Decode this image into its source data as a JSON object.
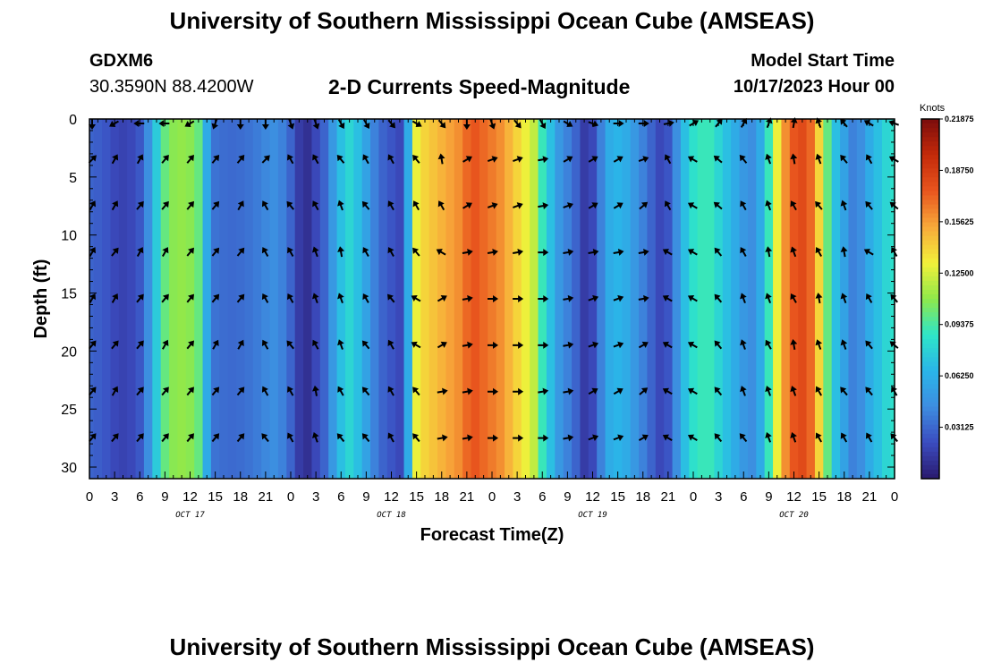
{
  "header": {
    "title": "University of Southern Mississippi Ocean Cube (AMSEAS)",
    "station": "GDXM6",
    "coords": "30.3590N  88.4200W",
    "subtitle": "2-D Currents Speed-Magnitude",
    "model_start_label": "Model Start Time",
    "model_start_value": "10/17/2023 Hour 00"
  },
  "footer": {
    "title": "University of Southern Mississippi Ocean Cube (AMSEAS)"
  },
  "colors": {
    "palette": [
      "#2a1a6e",
      "#3b4cc0",
      "#3d8de0",
      "#2ab5e8",
      "#2ee6c8",
      "#8fe84a",
      "#f3f03a",
      "#f8a93a",
      "#e8551e",
      "#c42a0a",
      "#7a0c0c"
    ]
  },
  "chart_data": {
    "type": "heatmap",
    "title": "2-D Currents Speed-Magnitude",
    "xlabel": "Forecast Time(Z)",
    "ylabel": "Depth (ft)",
    "x_tick_labels": [
      "0",
      "3",
      "6",
      "9",
      "12",
      "15",
      "18",
      "21",
      "0",
      "3",
      "6",
      "9",
      "12",
      "15",
      "18",
      "21",
      "0",
      "3",
      "6",
      "9",
      "12",
      "15",
      "18",
      "21",
      "0",
      "3",
      "6",
      "9",
      "12",
      "15",
      "18",
      "21",
      "0"
    ],
    "day_labels": [
      {
        "hour": 12,
        "label": "OCT 17"
      },
      {
        "hour": 36,
        "label": "OCT 18"
      },
      {
        "hour": 60,
        "label": "OCT 19"
      },
      {
        "hour": 84,
        "label": "OCT 20"
      }
    ],
    "xlim": [
      0,
      96
    ],
    "ylim": [
      0,
      31
    ],
    "y_ticks": [
      0,
      5,
      10,
      15,
      20,
      25,
      30
    ],
    "colorbar": {
      "label": "Knots",
      "tick_labels": [
        "0.21875",
        "0.18750",
        "0.15625",
        "0.12500",
        "0.09375",
        "0.06250",
        "0.03125"
      ],
      "tick_values": [
        0.21875,
        0.1875,
        0.15625,
        0.125,
        0.09375,
        0.0625,
        0.03125
      ],
      "range": [
        0,
        0.21875
      ]
    },
    "arrow_depths": [
      0,
      3.5,
      7.5,
      11.5,
      15.5,
      19.5,
      23.5,
      27.5
    ],
    "speed_by_hour": {
      "hours": [
        0,
        1,
        2,
        3,
        4,
        5,
        6,
        7,
        8,
        9,
        10,
        11,
        12,
        13,
        14,
        15,
        16,
        17,
        18,
        19,
        20,
        21,
        22,
        23,
        24,
        25,
        26,
        27,
        28,
        29,
        30,
        31,
        32,
        33,
        34,
        35,
        36,
        37,
        38,
        39,
        40,
        41,
        42,
        43,
        44,
        45,
        46,
        47,
        48,
        49,
        50,
        51,
        52,
        53,
        54,
        55,
        56,
        57,
        58,
        59,
        60,
        61,
        62,
        63,
        64,
        65,
        66,
        67,
        68,
        69,
        70,
        71,
        72,
        73,
        74,
        75,
        76,
        77,
        78,
        79,
        80,
        81,
        82,
        83,
        84,
        85,
        86,
        87,
        88,
        89,
        90,
        91,
        92,
        93,
        94,
        95,
        96
      ],
      "values": [
        0.03,
        0.028,
        0.025,
        0.02,
        0.018,
        0.02,
        0.026,
        0.045,
        0.075,
        0.1,
        0.108,
        0.11,
        0.108,
        0.1,
        0.06,
        0.035,
        0.033,
        0.032,
        0.033,
        0.035,
        0.038,
        0.042,
        0.045,
        0.04,
        0.03,
        0.015,
        0.01,
        0.02,
        0.03,
        0.05,
        0.07,
        0.08,
        0.07,
        0.055,
        0.04,
        0.03,
        0.025,
        0.02,
        0.06,
        0.13,
        0.14,
        0.145,
        0.15,
        0.155,
        0.16,
        0.17,
        0.175,
        0.17,
        0.165,
        0.16,
        0.15,
        0.14,
        0.13,
        0.12,
        0.09,
        0.07,
        0.05,
        0.04,
        0.03,
        0.015,
        0.02,
        0.04,
        0.06,
        0.065,
        0.06,
        0.05,
        0.04,
        0.03,
        0.02,
        0.025,
        0.045,
        0.07,
        0.085,
        0.09,
        0.09,
        0.08,
        0.07,
        0.06,
        0.05,
        0.045,
        0.06,
        0.09,
        0.13,
        0.16,
        0.175,
        0.18,
        0.17,
        0.14,
        0.1,
        0.07,
        0.055,
        0.04,
        0.045,
        0.06,
        0.07,
        0.08,
        0.085
      ]
    },
    "arrow_angles_deg": [
      [
        180,
        240,
        270,
        270,
        240,
        200,
        180,
        180,
        160,
        160,
        150,
        150,
        140,
        120,
        140,
        180,
        160,
        140,
        150,
        120,
        110,
        90,
        90,
        80,
        60,
        40,
        30,
        20,
        10,
        340,
        320,
        300,
        290
      ],
      [
        45,
        30,
        30,
        40,
        40,
        40,
        40,
        45,
        330,
        330,
        320,
        330,
        330,
        320,
        350,
        60,
        70,
        70,
        80,
        60,
        60,
        60,
        70,
        330,
        300,
        310,
        320,
        340,
        350,
        340,
        320,
        330,
        300
      ],
      [
        30,
        30,
        40,
        40,
        40,
        40,
        30,
        330,
        320,
        330,
        340,
        320,
        330,
        330,
        330,
        60,
        70,
        70,
        80,
        70,
        60,
        60,
        50,
        330,
        300,
        310,
        330,
        340,
        330,
        320,
        340,
        320,
        310
      ],
      [
        30,
        40,
        30,
        30,
        40,
        40,
        40,
        330,
        330,
        340,
        350,
        330,
        330,
        320,
        300,
        80,
        80,
        80,
        90,
        80,
        80,
        80,
        80,
        300,
        300,
        320,
        330,
        350,
        340,
        330,
        350,
        300,
        330
      ],
      [
        30,
        30,
        40,
        40,
        40,
        40,
        40,
        330,
        330,
        340,
        340,
        330,
        320,
        300,
        60,
        80,
        90,
        90,
        90,
        80,
        70,
        70,
        80,
        300,
        300,
        320,
        340,
        340,
        330,
        350,
        340,
        330,
        320
      ],
      [
        40,
        40,
        40,
        30,
        40,
        30,
        30,
        330,
        320,
        330,
        340,
        320,
        330,
        300,
        60,
        80,
        90,
        90,
        90,
        80,
        70,
        70,
        60,
        300,
        300,
        320,
        340,
        330,
        350,
        340,
        340,
        320,
        310
      ],
      [
        40,
        30,
        40,
        40,
        40,
        40,
        40,
        330,
        330,
        350,
        330,
        320,
        330,
        320,
        80,
        80,
        90,
        90,
        80,
        80,
        60,
        60,
        50,
        300,
        300,
        320,
        340,
        340,
        340,
        330,
        320,
        320,
        330
      ],
      [
        40,
        40,
        40,
        40,
        40,
        40,
        40,
        320,
        330,
        340,
        320,
        320,
        330,
        320,
        80,
        80,
        90,
        90,
        90,
        80,
        70,
        70,
        60,
        300,
        300,
        320,
        320,
        340,
        340,
        330,
        330,
        330,
        320
      ]
    ]
  }
}
